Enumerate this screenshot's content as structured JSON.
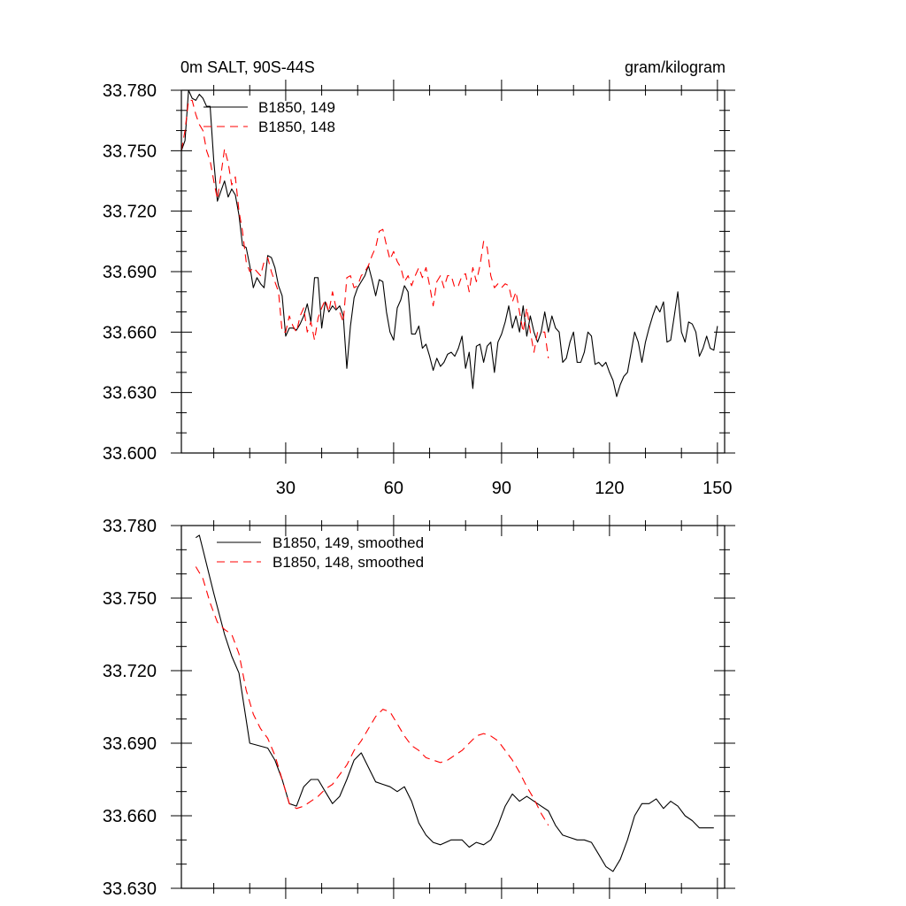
{
  "chart_data": [
    {
      "type": "line",
      "title": "0m SALT, 90S-44S",
      "units": "gram/kilogram",
      "xlabel": "",
      "ylabel": "",
      "xlim": [
        1,
        152
      ],
      "ylim": [
        33.6,
        33.78
      ],
      "xticks": [
        30,
        60,
        90,
        120,
        150
      ],
      "yticks": [
        "33.600",
        "33.630",
        "33.660",
        "33.690",
        "33.720",
        "33.750",
        "33.780"
      ],
      "legend": "top-left",
      "series": [
        {
          "name": "B1850, 149",
          "color": "#000000",
          "dash": "solid",
          "x": [
            1,
            2,
            3,
            4,
            5,
            6,
            7,
            8,
            9,
            10,
            11,
            12,
            13,
            14,
            15,
            16,
            17,
            18,
            19,
            20,
            21,
            22,
            23,
            24,
            25,
            26,
            27,
            28,
            29,
            30,
            31,
            32,
            33,
            34,
            35,
            36,
            37,
            38,
            39,
            40,
            41,
            42,
            43,
            44,
            45,
            46,
            47,
            48,
            49,
            50,
            51,
            52,
            53,
            54,
            55,
            56,
            57,
            58,
            59,
            60,
            61,
            62,
            63,
            64,
            65,
            66,
            67,
            68,
            69,
            70,
            71,
            72,
            73,
            74,
            75,
            76,
            77,
            78,
            79,
            80,
            81,
            82,
            83,
            84,
            85,
            86,
            87,
            88,
            89,
            90,
            91,
            92,
            93,
            94,
            95,
            96,
            97,
            98,
            99,
            100,
            101,
            102,
            103,
            104,
            105,
            106,
            107,
            108,
            109,
            110,
            111,
            112,
            113,
            114,
            115,
            116,
            117,
            118,
            119,
            120,
            121,
            122,
            123,
            124,
            125,
            126,
            127,
            128,
            129,
            130,
            131,
            132,
            133,
            134,
            135,
            136,
            137,
            138,
            139,
            140,
            141,
            142,
            143,
            144,
            145,
            146,
            147,
            148,
            149,
            150
          ],
          "values": [
            33.75,
            33.755,
            33.78,
            33.776,
            33.775,
            33.778,
            33.776,
            33.772,
            33.772,
            33.745,
            33.725,
            33.73,
            33.735,
            33.727,
            33.731,
            33.728,
            33.718,
            33.703,
            33.702,
            33.693,
            33.682,
            33.687,
            33.684,
            33.682,
            33.698,
            33.697,
            33.692,
            33.683,
            33.678,
            33.658,
            33.662,
            33.662,
            33.661,
            33.664,
            33.668,
            33.674,
            33.665,
            33.687,
            33.687,
            33.662,
            33.675,
            33.67,
            33.673,
            33.671,
            33.673,
            33.668,
            33.642,
            33.663,
            33.677,
            33.682,
            33.685,
            33.688,
            33.693,
            33.686,
            33.678,
            33.686,
            33.685,
            33.67,
            33.66,
            33.656,
            33.672,
            33.676,
            33.683,
            33.68,
            33.659,
            33.659,
            33.663,
            33.652,
            33.654,
            33.648,
            33.641,
            33.647,
            33.643,
            33.645,
            33.649,
            33.65,
            33.648,
            33.652,
            33.658,
            33.642,
            33.65,
            33.632,
            33.653,
            33.654,
            33.645,
            33.653,
            33.655,
            33.64,
            33.655,
            33.659,
            33.665,
            33.673,
            33.662,
            33.668,
            33.66,
            33.673,
            33.658,
            33.668,
            33.66,
            33.655,
            33.66,
            33.67,
            33.66,
            33.668,
            33.662,
            33.66,
            33.645,
            33.647,
            33.655,
            33.66,
            33.645,
            33.645,
            33.65,
            33.66,
            33.658,
            33.644,
            33.645,
            33.643,
            33.645,
            33.64,
            33.636,
            33.628,
            33.634,
            33.638,
            33.64,
            33.65,
            33.66,
            33.655,
            33.645,
            33.655,
            33.662,
            33.668,
            33.673,
            33.67,
            33.675,
            33.655,
            33.656,
            33.668,
            33.68,
            33.66,
            33.655,
            33.665,
            33.664,
            33.66,
            33.648,
            33.652,
            33.658,
            33.652,
            33.651,
            33.663
          ]
        },
        {
          "name": "B1850, 148",
          "color": "#ff0000",
          "dash": "dashed",
          "x": [
            1,
            2,
            3,
            4,
            5,
            6,
            7,
            8,
            9,
            10,
            11,
            12,
            13,
            14,
            15,
            16,
            17,
            18,
            19,
            20,
            21,
            22,
            23,
            24,
            25,
            26,
            27,
            28,
            29,
            30,
            31,
            32,
            33,
            34,
            35,
            36,
            37,
            38,
            39,
            40,
            41,
            42,
            43,
            44,
            45,
            46,
            47,
            48,
            49,
            50,
            51,
            52,
            53,
            54,
            55,
            56,
            57,
            58,
            59,
            60,
            61,
            62,
            63,
            64,
            65,
            66,
            67,
            68,
            69,
            70,
            71,
            72,
            73,
            74,
            75,
            76,
            77,
            78,
            79,
            80,
            81,
            82,
            83,
            84,
            85,
            86,
            87,
            88,
            89,
            90,
            91,
            92,
            93,
            94,
            95,
            96,
            97,
            98,
            99,
            100,
            101,
            102,
            103
          ],
          "values": [
            33.75,
            33.76,
            33.775,
            33.775,
            33.768,
            33.763,
            33.76,
            33.75,
            33.745,
            33.735,
            33.726,
            33.738,
            33.751,
            33.744,
            33.733,
            33.737,
            33.72,
            33.71,
            33.695,
            33.69,
            33.692,
            33.69,
            33.688,
            33.695,
            33.697,
            33.69,
            33.685,
            33.68,
            33.66,
            33.66,
            33.668,
            33.663,
            33.66,
            33.668,
            33.672,
            33.66,
            33.665,
            33.656,
            33.667,
            33.672,
            33.676,
            33.67,
            33.68,
            33.672,
            33.67,
            33.665,
            33.687,
            33.688,
            33.682,
            33.683,
            33.688,
            33.69,
            33.693,
            33.698,
            33.702,
            33.71,
            33.711,
            33.703,
            33.696,
            33.7,
            33.695,
            33.692,
            33.685,
            33.688,
            33.683,
            33.688,
            33.692,
            33.687,
            33.692,
            33.683,
            33.673,
            33.685,
            33.688,
            33.682,
            33.688,
            33.688,
            33.682,
            33.683,
            33.688,
            33.689,
            33.68,
            33.692,
            33.685,
            33.693,
            33.705,
            33.702,
            33.688,
            33.682,
            33.684,
            33.682,
            33.684,
            33.683,
            33.675,
            33.68,
            33.67,
            33.66,
            33.672,
            33.66,
            33.65,
            33.66,
            33.66,
            33.66,
            33.647
          ]
        }
      ]
    },
    {
      "type": "line",
      "title": "",
      "xlabel": "",
      "ylabel": "",
      "xlim": [
        1,
        152
      ],
      "ylim": [
        33.63,
        33.78
      ],
      "xticks": [
        30,
        60,
        90,
        120,
        150
      ],
      "yticks": [
        "33.630",
        "33.660",
        "33.690",
        "33.720",
        "33.750",
        "33.780"
      ],
      "legend": "top-left",
      "series": [
        {
          "name": "B1850, 149, smoothed",
          "color": "#000000",
          "dash": "solid",
          "x": [
            5,
            6,
            7,
            10,
            13,
            15,
            17,
            20,
            25,
            27,
            29,
            31,
            33,
            35,
            37,
            39,
            41,
            43,
            45,
            47,
            49,
            51,
            53,
            55,
            57,
            59,
            61,
            63,
            65,
            67,
            69,
            71,
            73,
            76,
            79,
            81,
            83,
            85,
            87,
            89,
            91,
            93,
            95,
            97,
            99,
            101,
            103,
            105,
            107,
            109,
            111,
            113,
            115,
            117,
            119,
            121,
            123,
            125,
            127,
            129,
            131,
            133,
            135,
            137,
            139,
            141,
            143,
            145,
            147,
            149
          ],
          "values": [
            33.775,
            33.776,
            33.77,
            33.752,
            33.735,
            33.726,
            33.719,
            33.69,
            33.688,
            33.683,
            33.675,
            33.665,
            33.664,
            33.672,
            33.675,
            33.675,
            33.67,
            33.665,
            33.668,
            33.675,
            33.683,
            33.686,
            33.68,
            33.674,
            33.673,
            33.672,
            33.67,
            33.672,
            33.666,
            33.657,
            33.652,
            33.649,
            33.648,
            33.65,
            33.65,
            33.647,
            33.649,
            33.648,
            33.65,
            33.656,
            33.664,
            33.669,
            33.666,
            33.668,
            33.666,
            33.664,
            33.662,
            33.656,
            33.652,
            33.651,
            33.65,
            33.65,
            33.649,
            33.644,
            33.639,
            33.637,
            33.642,
            33.65,
            33.66,
            33.665,
            33.665,
            33.667,
            33.663,
            33.666,
            33.664,
            33.66,
            33.658,
            33.655,
            33.655,
            33.655
          ]
        },
        {
          "name": "B1850, 148, smoothed",
          "color": "#ff0000",
          "dash": "dashed",
          "x": [
            5,
            7,
            9,
            11,
            13,
            15,
            17,
            19,
            21,
            23,
            25,
            27,
            29,
            31,
            33,
            35,
            37,
            39,
            41,
            43,
            45,
            47,
            49,
            51,
            53,
            55,
            57,
            59,
            61,
            63,
            65,
            67,
            69,
            71,
            73,
            75,
            77,
            79,
            81,
            83,
            85,
            87,
            89,
            91,
            93,
            95,
            97,
            99,
            101,
            103
          ],
          "values": [
            33.763,
            33.758,
            33.748,
            33.74,
            33.737,
            33.735,
            33.727,
            33.712,
            33.702,
            33.696,
            33.692,
            33.685,
            33.675,
            33.665,
            33.663,
            33.664,
            33.666,
            33.668,
            33.671,
            33.673,
            33.677,
            33.681,
            33.687,
            33.691,
            33.696,
            33.701,
            33.704,
            33.703,
            33.698,
            33.693,
            33.689,
            33.687,
            33.684,
            33.683,
            33.682,
            33.683,
            33.685,
            33.687,
            33.69,
            33.693,
            33.694,
            33.693,
            33.691,
            33.687,
            33.683,
            33.678,
            33.672,
            33.667,
            33.661,
            33.656
          ]
        }
      ]
    }
  ]
}
